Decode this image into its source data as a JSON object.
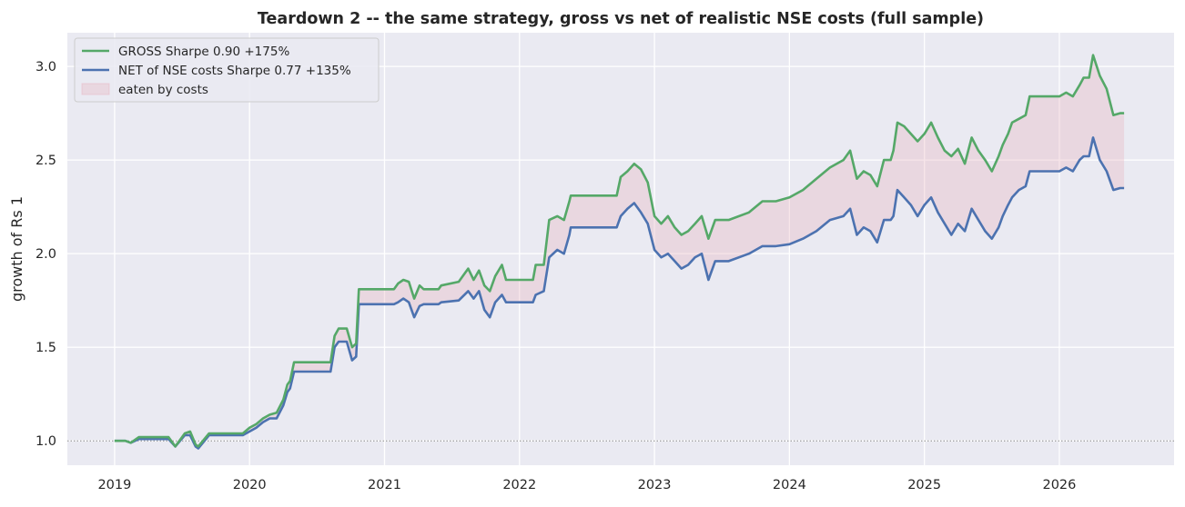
{
  "chart_data": {
    "type": "line",
    "title": "Teardown 2 -- the same strategy, gross vs net of realistic NSE costs (full sample)",
    "xlabel": "",
    "ylabel": "growth of Rs 1",
    "xlim": [
      2018.65,
      2026.85
    ],
    "ylim": [
      0.87,
      3.18
    ],
    "x_ticks": [
      {
        "value": 2019,
        "label": "2019"
      },
      {
        "value": 2020,
        "label": "2020"
      },
      {
        "value": 2021,
        "label": "2021"
      },
      {
        "value": 2022,
        "label": "2022"
      },
      {
        "value": 2023,
        "label": "2023"
      },
      {
        "value": 2024,
        "label": "2024"
      },
      {
        "value": 2025,
        "label": "2025"
      },
      {
        "value": 2026,
        "label": "2026"
      }
    ],
    "y_ticks": [
      {
        "value": 1.0,
        "label": "1.0"
      },
      {
        "value": 1.5,
        "label": "1.5"
      },
      {
        "value": 2.0,
        "label": "2.0"
      },
      {
        "value": 2.5,
        "label": "2.5"
      },
      {
        "value": 3.0,
        "label": "3.0"
      }
    ],
    "reference_line": {
      "y": 1.0,
      "style": "dotted"
    },
    "grid": true,
    "legend_position": "top-left",
    "colors": {
      "background": "#eaeaf2",
      "grid": "#ffffff",
      "gross": "#55a868",
      "net": "#4c72b0",
      "fill": "#e8b4bf"
    },
    "fill_between": {
      "name": "eaten by costs",
      "between": [
        "GROSS",
        "NET"
      ]
    },
    "series": [
      {
        "name": "GROSS",
        "legend_label": "GROSS   Sharpe 0.90   +175%",
        "color": "#55a868",
        "x": [
          2019.0,
          2019.08,
          2019.12,
          2019.18,
          2019.4,
          2019.45,
          2019.52,
          2019.56,
          2019.6,
          2019.62,
          2019.7,
          2019.95,
          2020.0,
          2020.05,
          2020.1,
          2020.15,
          2020.2,
          2020.25,
          2020.28,
          2020.3,
          2020.33,
          2020.6,
          2020.63,
          2020.66,
          2020.68,
          2020.72,
          2020.76,
          2020.79,
          2020.81,
          2020.82,
          2021.07,
          2021.1,
          2021.14,
          2021.18,
          2021.22,
          2021.26,
          2021.29,
          2021.3,
          2021.4,
          2021.42,
          2021.55,
          2021.62,
          2021.66,
          2021.7,
          2021.74,
          2021.78,
          2021.82,
          2021.87,
          2021.9,
          2021.92,
          2022.1,
          2022.12,
          2022.18,
          2022.22,
          2022.28,
          2022.33,
          2022.37,
          2022.38,
          2022.72,
          2022.75,
          2022.8,
          2022.85,
          2022.9,
          2022.95,
          2023.0,
          2023.05,
          2023.1,
          2023.15,
          2023.2,
          2023.25,
          2023.3,
          2023.35,
          2023.4,
          2023.45,
          2023.55,
          2023.7,
          2023.8,
          2023.9,
          2024.0,
          2024.1,
          2024.2,
          2024.3,
          2024.4,
          2024.45,
          2024.5,
          2024.55,
          2024.6,
          2024.65,
          2024.7,
          2024.75,
          2024.77,
          2024.8,
          2024.85,
          2024.9,
          2024.95,
          2025.0,
          2025.05,
          2025.1,
          2025.15,
          2025.2,
          2025.25,
          2025.3,
          2025.35,
          2025.4,
          2025.45,
          2025.5,
          2025.55,
          2025.58,
          2025.62,
          2025.65,
          2025.7,
          2025.75,
          2025.78,
          2026.0,
          2026.05,
          2026.1,
          2026.15,
          2026.18,
          2026.2,
          2026.22,
          2026.25,
          2026.3,
          2026.35,
          2026.4,
          2026.45,
          2026.48
        ],
        "y": [
          1.0,
          1.0,
          0.99,
          1.02,
          1.02,
          0.97,
          1.04,
          1.05,
          0.98,
          0.97,
          1.04,
          1.04,
          1.07,
          1.09,
          1.12,
          1.14,
          1.15,
          1.22,
          1.3,
          1.32,
          1.42,
          1.42,
          1.56,
          1.6,
          1.6,
          1.6,
          1.5,
          1.52,
          1.81,
          1.81,
          1.81,
          1.84,
          1.86,
          1.85,
          1.76,
          1.83,
          1.81,
          1.81,
          1.81,
          1.83,
          1.85,
          1.92,
          1.86,
          1.91,
          1.83,
          1.8,
          1.88,
          1.94,
          1.86,
          1.86,
          1.86,
          1.94,
          1.94,
          2.18,
          2.2,
          2.18,
          2.28,
          2.31,
          2.31,
          2.41,
          2.44,
          2.48,
          2.45,
          2.38,
          2.2,
          2.16,
          2.2,
          2.14,
          2.1,
          2.12,
          2.16,
          2.2,
          2.08,
          2.18,
          2.18,
          2.22,
          2.28,
          2.28,
          2.3,
          2.34,
          2.4,
          2.46,
          2.5,
          2.55,
          2.4,
          2.44,
          2.42,
          2.36,
          2.5,
          2.5,
          2.55,
          2.7,
          2.68,
          2.64,
          2.6,
          2.64,
          2.7,
          2.62,
          2.55,
          2.52,
          2.56,
          2.48,
          2.62,
          2.55,
          2.5,
          2.44,
          2.52,
          2.58,
          2.64,
          2.7,
          2.72,
          2.74,
          2.84,
          2.84,
          2.86,
          2.84,
          2.9,
          2.94,
          2.94,
          2.94,
          3.06,
          2.95,
          2.88,
          2.74,
          2.75,
          2.75
        ]
      },
      {
        "name": "NET",
        "legend_label": "NET of NSE costs   Sharpe 0.77   +135%",
        "color": "#4c72b0",
        "x": [
          2019.0,
          2019.08,
          2019.12,
          2019.18,
          2019.4,
          2019.45,
          2019.52,
          2019.56,
          2019.6,
          2019.62,
          2019.7,
          2019.95,
          2020.0,
          2020.05,
          2020.1,
          2020.15,
          2020.2,
          2020.25,
          2020.28,
          2020.3,
          2020.33,
          2020.6,
          2020.63,
          2020.66,
          2020.68,
          2020.72,
          2020.76,
          2020.79,
          2020.81,
          2020.82,
          2021.07,
          2021.1,
          2021.14,
          2021.18,
          2021.22,
          2021.26,
          2021.29,
          2021.3,
          2021.4,
          2021.42,
          2021.55,
          2021.62,
          2021.66,
          2021.7,
          2021.74,
          2021.78,
          2021.82,
          2021.87,
          2021.9,
          2021.92,
          2022.1,
          2022.12,
          2022.18,
          2022.22,
          2022.28,
          2022.33,
          2022.37,
          2022.38,
          2022.72,
          2022.75,
          2022.8,
          2022.85,
          2022.9,
          2022.95,
          2023.0,
          2023.05,
          2023.1,
          2023.15,
          2023.2,
          2023.25,
          2023.3,
          2023.35,
          2023.4,
          2023.45,
          2023.55,
          2023.7,
          2023.8,
          2023.9,
          2024.0,
          2024.1,
          2024.2,
          2024.3,
          2024.4,
          2024.45,
          2024.5,
          2024.55,
          2024.6,
          2024.65,
          2024.7,
          2024.75,
          2024.77,
          2024.8,
          2024.85,
          2024.9,
          2024.95,
          2025.0,
          2025.05,
          2025.1,
          2025.15,
          2025.2,
          2025.25,
          2025.3,
          2025.35,
          2025.4,
          2025.45,
          2025.5,
          2025.55,
          2025.58,
          2025.62,
          2025.65,
          2025.7,
          2025.75,
          2025.78,
          2026.0,
          2026.05,
          2026.1,
          2026.15,
          2026.18,
          2026.2,
          2026.22,
          2026.25,
          2026.3,
          2026.35,
          2026.4,
          2026.45,
          2026.48
        ],
        "y": [
          1.0,
          1.0,
          0.99,
          1.01,
          1.01,
          0.97,
          1.03,
          1.03,
          0.97,
          0.96,
          1.03,
          1.03,
          1.05,
          1.07,
          1.1,
          1.12,
          1.12,
          1.19,
          1.26,
          1.28,
          1.37,
          1.37,
          1.5,
          1.53,
          1.53,
          1.53,
          1.43,
          1.45,
          1.73,
          1.73,
          1.73,
          1.74,
          1.76,
          1.74,
          1.66,
          1.72,
          1.73,
          1.73,
          1.73,
          1.74,
          1.75,
          1.8,
          1.76,
          1.8,
          1.7,
          1.66,
          1.74,
          1.78,
          1.74,
          1.74,
          1.74,
          1.78,
          1.8,
          1.98,
          2.02,
          2.0,
          2.1,
          2.14,
          2.14,
          2.2,
          2.24,
          2.27,
          2.22,
          2.16,
          2.02,
          1.98,
          2.0,
          1.96,
          1.92,
          1.94,
          1.98,
          2.0,
          1.86,
          1.96,
          1.96,
          2.0,
          2.04,
          2.04,
          2.05,
          2.08,
          2.12,
          2.18,
          2.2,
          2.24,
          2.1,
          2.14,
          2.12,
          2.06,
          2.18,
          2.18,
          2.2,
          2.34,
          2.3,
          2.26,
          2.2,
          2.26,
          2.3,
          2.22,
          2.16,
          2.1,
          2.16,
          2.12,
          2.24,
          2.18,
          2.12,
          2.08,
          2.14,
          2.2,
          2.26,
          2.3,
          2.34,
          2.36,
          2.44,
          2.44,
          2.46,
          2.44,
          2.5,
          2.52,
          2.52,
          2.52,
          2.62,
          2.5,
          2.44,
          2.34,
          2.35,
          2.35
        ]
      }
    ],
    "legend": [
      {
        "label": "GROSS   Sharpe 0.90   +175%",
        "kind": "line",
        "color": "#55a868"
      },
      {
        "label": "NET of NSE costs   Sharpe 0.77   +135%",
        "kind": "line",
        "color": "#4c72b0"
      },
      {
        "label": "eaten by costs",
        "kind": "patch",
        "color": "#e8b4bf"
      }
    ]
  }
}
